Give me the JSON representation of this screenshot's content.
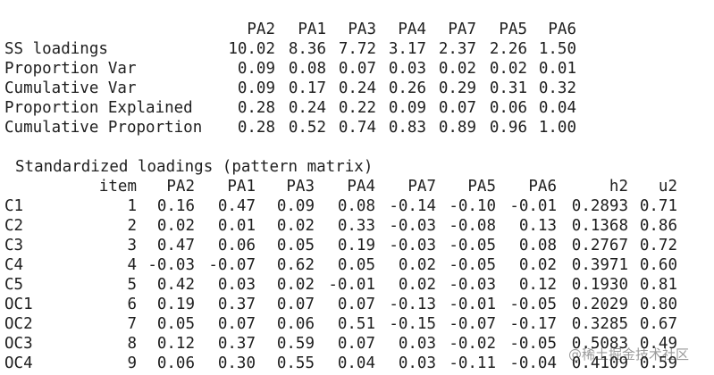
{
  "variance_table": {
    "header": [
      "PA2",
      "PA1",
      "PA3",
      "PA4",
      "PA7",
      "PA5",
      "PA6"
    ],
    "rows": [
      [
        "SS loadings",
        "10.02",
        "8.36",
        "7.72",
        "3.17",
        "2.37",
        "2.26",
        "1.50"
      ],
      [
        "Proportion Var",
        "0.09",
        "0.08",
        "0.07",
        "0.03",
        "0.02",
        "0.02",
        "0.01"
      ],
      [
        "Cumulative Var",
        "0.09",
        "0.17",
        "0.24",
        "0.26",
        "0.29",
        "0.31",
        "0.32"
      ],
      [
        "Proportion Explained",
        "0.28",
        "0.24",
        "0.22",
        "0.09",
        "0.07",
        "0.06",
        "0.04"
      ],
      [
        "Cumulative Proportion",
        "0.28",
        "0.52",
        "0.74",
        "0.83",
        "0.89",
        "0.96",
        "1.00"
      ]
    ]
  },
  "loadings_table": {
    "title": "Standardized loadings (pattern matrix)",
    "header": [
      "item",
      "PA2",
      "PA1",
      "PA3",
      "PA4",
      "PA7",
      "PA5",
      "PA6",
      "h2",
      "u2"
    ],
    "rows": [
      [
        "C1",
        "1",
        "0.16",
        "0.47",
        "0.09",
        "0.08",
        "-0.14",
        "-0.10",
        "-0.01",
        "0.2893",
        "0.71"
      ],
      [
        "C2",
        "2",
        "0.02",
        "0.01",
        "0.02",
        "0.33",
        "-0.03",
        "-0.08",
        "0.13",
        "0.1368",
        "0.86"
      ],
      [
        "C3",
        "3",
        "0.47",
        "0.06",
        "0.05",
        "0.19",
        "-0.03",
        "-0.05",
        "0.08",
        "0.2767",
        "0.72"
      ],
      [
        "C4",
        "4",
        "-0.03",
        "-0.07",
        "0.62",
        "0.05",
        "0.02",
        "-0.05",
        "0.02",
        "0.3971",
        "0.60"
      ],
      [
        "C5",
        "5",
        "0.42",
        "0.03",
        "0.02",
        "-0.01",
        "0.02",
        "-0.03",
        "0.12",
        "0.1930",
        "0.81"
      ],
      [
        "OC1",
        "6",
        "0.19",
        "0.37",
        "0.07",
        "0.07",
        "-0.13",
        "-0.01",
        "-0.05",
        "0.2029",
        "0.80"
      ],
      [
        "OC2",
        "7",
        "0.05",
        "0.07",
        "0.06",
        "0.51",
        "-0.15",
        "-0.07",
        "-0.17",
        "0.3285",
        "0.67"
      ],
      [
        "OC3",
        "8",
        "0.12",
        "0.37",
        "0.59",
        "0.07",
        "0.03",
        "-0.02",
        "-0.05",
        "0.5083",
        "0.49"
      ],
      [
        "OC4",
        "9",
        "0.06",
        "0.30",
        "0.55",
        "0.04",
        "0.03",
        "-0.11",
        "-0.04",
        "0.4109",
        "0.59"
      ]
    ]
  },
  "watermark": "@稀土掘金技术社区"
}
